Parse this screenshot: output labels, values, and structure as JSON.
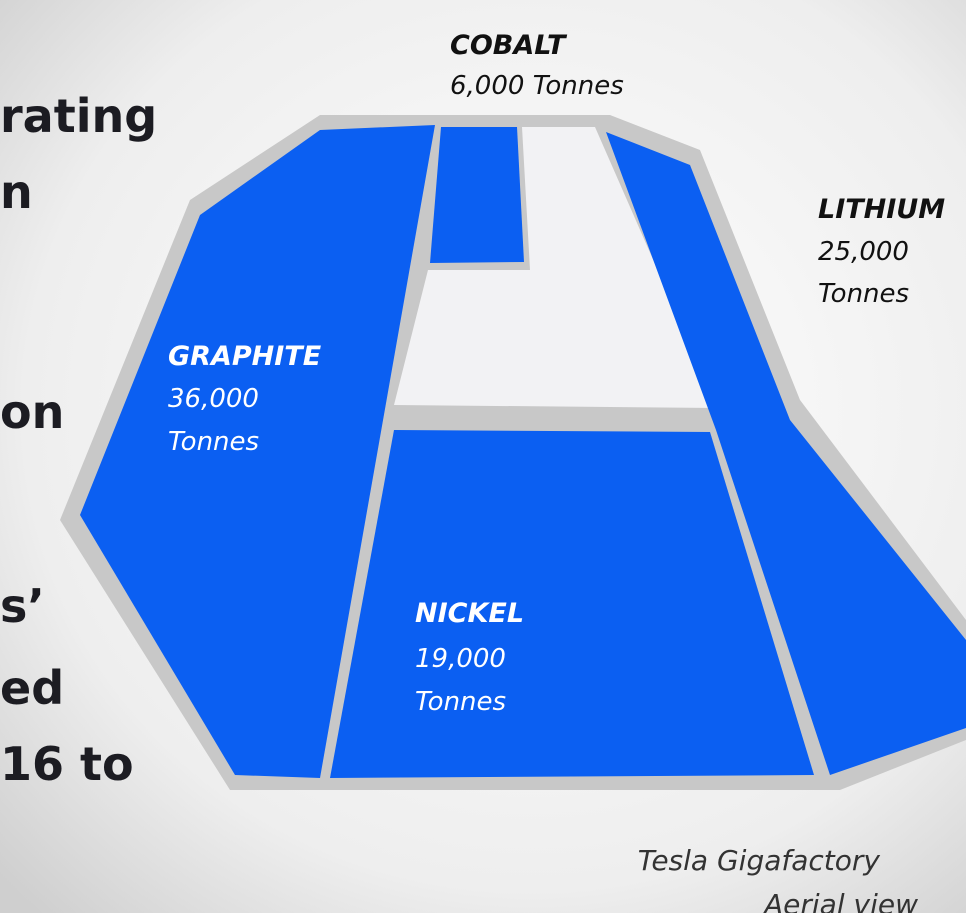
{
  "side_text": {
    "lines": [
      "rating",
      "n",
      "on",
      "s’",
      "ed",
      "16 to"
    ]
  },
  "regions": {
    "cobalt": {
      "name": "COBALT",
      "amount": "6,000 Tonnes"
    },
    "lithium": {
      "name": "LITHIUM",
      "amount": "25,000",
      "unit": "Tonnes"
    },
    "graphite": {
      "name": "GRAPHITE",
      "amount": "36,000",
      "unit": "Tonnes"
    },
    "nickel": {
      "name": "NICKEL",
      "amount": "19,000",
      "unit": "Tonnes"
    }
  },
  "caption": {
    "title": "Tesla Gigafactory",
    "subtitle": "Aerial view"
  }
}
